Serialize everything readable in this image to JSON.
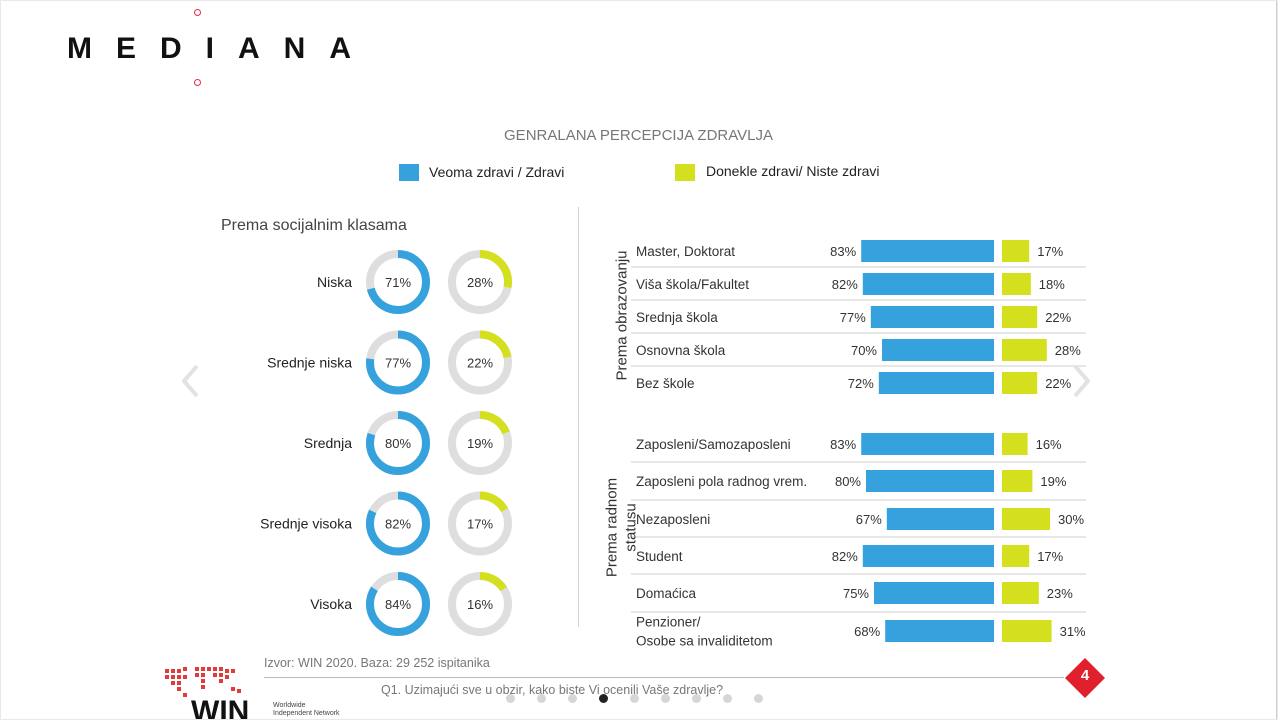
{
  "brand": {
    "logo_text": "MEDIANA"
  },
  "chart_title": "GENRALANA PERCEPCIJA ZDRAVLJA",
  "legend": [
    {
      "label": "Veoma zdravi / Zdravi",
      "color": "#36a2dd"
    },
    {
      "label": "Donekle zdravi/ Niste zdravi",
      "color": "#d4df1e"
    }
  ],
  "colors": {
    "blue": "#36a2dd",
    "yellow": "#d4df1e",
    "track": "#dedede",
    "badge": "#e0202c"
  },
  "chart_data": [
    {
      "type": "donut",
      "title": "Prema socijalnim klasama",
      "categories": [
        "Niska",
        "Srednje niska",
        "Srednja",
        "Srednje visoka",
        "Visoka"
      ],
      "series": [
        {
          "name": "Veoma zdravi / Zdravi",
          "values": [
            71,
            77,
            80,
            82,
            84
          ]
        },
        {
          "name": "Donekle zdravi/ Niste zdravi",
          "values": [
            28,
            22,
            19,
            17,
            16
          ]
        }
      ],
      "unit": "%"
    },
    {
      "type": "bar",
      "group_label": "Prema obrazovanju",
      "categories": [
        "Master, Doktorat",
        "Viša škola/Fakultet",
        "Srednja škola",
        "Osnovna škola",
        "Bez škole"
      ],
      "series": [
        {
          "name": "Veoma zdravi / Zdravi",
          "values": [
            83,
            82,
            77,
            70,
            72
          ]
        },
        {
          "name": "Donekle zdravi/ Niste zdravi",
          "values": [
            17,
            18,
            22,
            28,
            22
          ]
        }
      ],
      "unit": "%"
    },
    {
      "type": "bar",
      "group_label": [
        "Prema radnom",
        "statusu"
      ],
      "categories": [
        "Zaposleni/Samozaposleni",
        "Zaposleni pola radnog vrem.",
        "Nezaposleni",
        "Student",
        "Domaćica",
        "Penzioner/\nOsobe sa invaliditetom"
      ],
      "series": [
        {
          "name": "Veoma zdravi / Zdravi",
          "values": [
            83,
            80,
            67,
            82,
            75,
            68
          ]
        },
        {
          "name": "Donekle zdravi/ Niste zdravi",
          "values": [
            16,
            19,
            30,
            17,
            23,
            31
          ]
        }
      ],
      "unit": "%"
    }
  ],
  "footer": {
    "source": "Izvor: WIN 2020. Baza: 29 252 ispitanika",
    "question": "Q1. Uzimajući sve u obzir, kako biste Vi ocenili Vaše zdravlje?",
    "page_number": "4",
    "win_text": "WIN",
    "win_caption": [
      "Worldwide",
      "Independent Network"
    ]
  },
  "carousel": {
    "dot_count": 9,
    "active_index": 3,
    "prev_icon": "chevron-left-icon",
    "next_icon": "chevron-right-icon"
  }
}
